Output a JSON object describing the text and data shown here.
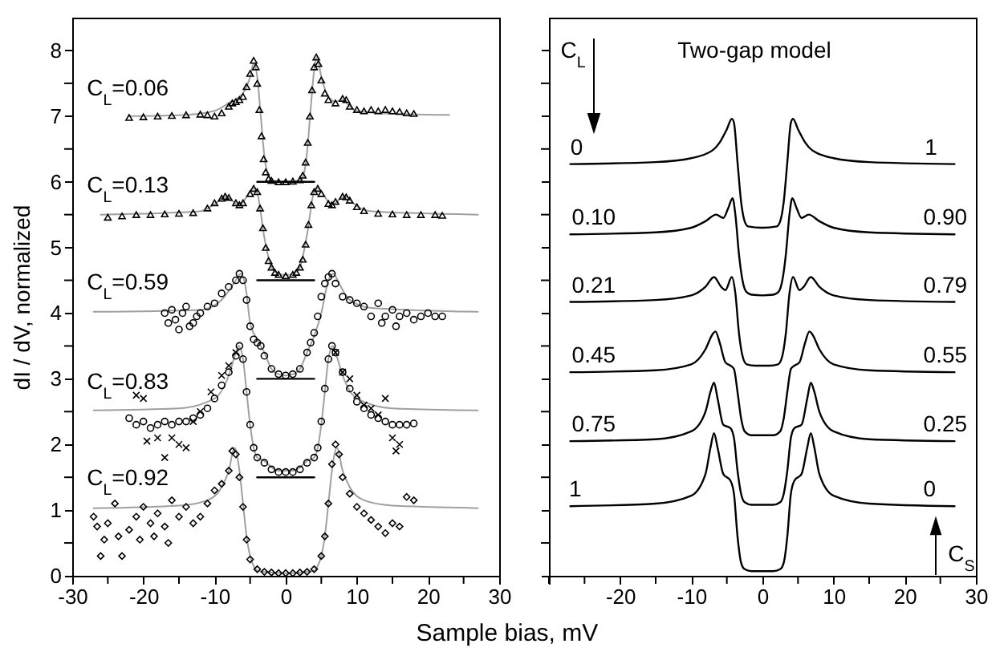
{
  "chart_data": [
    {
      "type": "scatter",
      "xlabel": "Sample bias, mV",
      "ylabel": "dI / dV, normalized",
      "xlim": [
        -30,
        30
      ],
      "ylim": [
        0,
        8.5
      ],
      "xticks": [
        -30,
        {
          "value": -25,
          "label": null
        },
        -20,
        {
          "value": -15,
          "label": null
        },
        -10,
        {
          "value": -5,
          "label": null
        },
        0,
        {
          "value": 5,
          "label": null
        },
        10,
        {
          "value": 15,
          "label": null
        },
        20,
        {
          "value": 25,
          "label": null
        },
        30
      ],
      "yticks": [
        0,
        {
          "value": 0.5,
          "label": null
        },
        1,
        {
          "value": 1.5,
          "label": null
        },
        2,
        {
          "value": 2.5,
          "label": null
        },
        3,
        {
          "value": 3.5,
          "label": null
        },
        4,
        {
          "value": 4.5,
          "label": null
        },
        5,
        {
          "value": 5.5,
          "label": null
        },
        6,
        {
          "value": 6.5,
          "label": null
        },
        7,
        {
          "value": 7.5,
          "label": null
        },
        8
      ],
      "series": [
        {
          "type": "line",
          "color": "#a0a0a0",
          "x": [
            -22,
            -14,
            -10,
            -8,
            -6,
            -5,
            -4.5,
            -4,
            -3.5,
            -3,
            -2.5,
            -2,
            0,
            2,
            2.5,
            3,
            3.5,
            4,
            4.4,
            5,
            6,
            7,
            8,
            9,
            10,
            14,
            23
          ],
          "values": [
            7.0,
            7.02,
            7.08,
            7.2,
            7.35,
            7.6,
            7.8,
            7.6,
            7.0,
            6.4,
            6.1,
            6.02,
            6.0,
            6.02,
            6.1,
            6.45,
            7.1,
            7.7,
            7.9,
            7.6,
            7.3,
            7.22,
            7.25,
            7.15,
            7.08,
            7.04,
            7.02
          ]
        },
        {
          "color": "#000000",
          "marker": "triangle",
          "x": [
            -22,
            -20,
            -18,
            -16,
            -14,
            -12,
            -11,
            -10,
            -9,
            -8,
            -7.5,
            -7,
            -6.5,
            -6,
            -5.5,
            -5,
            -4.5,
            -4.2,
            -4,
            -3.7,
            -3.4,
            -3.1,
            -2.8,
            -2.4,
            -2,
            -1,
            0,
            1,
            2,
            2.4,
            2.8,
            3.1,
            3.4,
            3.7,
            4,
            4.3,
            4.6,
            5,
            5.5,
            6,
            7,
            8,
            8.5,
            9,
            10,
            11,
            12,
            13,
            14,
            15,
            16,
            17,
            18
          ],
          "values": [
            6.98,
            6.99,
            7.0,
            7.01,
            7.02,
            7.03,
            7.02,
            7.0,
            7.05,
            7.15,
            7.2,
            7.22,
            7.25,
            7.3,
            7.45,
            7.65,
            7.85,
            7.75,
            7.5,
            7.1,
            6.7,
            6.35,
            6.15,
            6.05,
            6.02,
            6.0,
            6.0,
            6.01,
            6.03,
            6.1,
            6.3,
            6.6,
            7.0,
            7.4,
            7.75,
            7.9,
            7.8,
            7.55,
            7.35,
            7.25,
            7.2,
            7.27,
            7.25,
            7.15,
            7.1,
            7.08,
            7.1,
            7.08,
            7.1,
            7.08,
            7.07,
            7.05,
            7.04
          ]
        },
        {
          "type": "line",
          "color": "#000000",
          "x": [
            -4,
            4
          ],
          "values": [
            6.0,
            6.0
          ]
        },
        {
          "type": "line",
          "color": "#a0a0a0",
          "x": [
            -26,
            -12,
            -10,
            -8.5,
            -6.5,
            -4.5,
            -4,
            -3,
            -2,
            -1,
            0,
            1,
            2,
            3,
            4,
            4.5,
            6.5,
            8.3,
            10,
            12,
            27
          ],
          "values": [
            5.5,
            5.55,
            5.66,
            5.77,
            5.65,
            5.9,
            5.83,
            5.15,
            4.7,
            4.6,
            4.58,
            4.6,
            4.7,
            5.2,
            5.85,
            5.9,
            5.65,
            5.78,
            5.63,
            5.55,
            5.5
          ]
        },
        {
          "color": "#000000",
          "marker": "triangle",
          "x": [
            -25,
            -23,
            -21,
            -19,
            -17,
            -15,
            -13,
            -11,
            -10,
            -9,
            -8.5,
            -8,
            -7,
            -6.5,
            -6,
            -5,
            -4.5,
            -4,
            -3.6,
            -3.2,
            -2.8,
            -2.4,
            -2,
            -1.5,
            -1,
            0,
            1,
            1.5,
            2,
            2.4,
            2.8,
            3.2,
            3.6,
            4,
            4.5,
            5,
            6,
            6.5,
            7,
            8,
            8.5,
            9,
            10,
            11,
            13,
            15,
            17,
            19,
            21,
            22
          ],
          "values": [
            5.46,
            5.48,
            5.5,
            5.5,
            5.51,
            5.52,
            5.53,
            5.6,
            5.68,
            5.75,
            5.78,
            5.76,
            5.68,
            5.65,
            5.68,
            5.82,
            5.9,
            5.85,
            5.6,
            5.3,
            5.0,
            4.8,
            4.7,
            4.62,
            4.59,
            4.57,
            4.59,
            4.62,
            4.7,
            4.82,
            5.05,
            5.35,
            5.65,
            5.85,
            5.9,
            5.82,
            5.67,
            5.65,
            5.7,
            5.78,
            5.77,
            5.72,
            5.62,
            5.56,
            5.52,
            5.51,
            5.5,
            5.5,
            5.5,
            5.49
          ]
        },
        {
          "type": "line",
          "color": "#000000",
          "x": [
            -4,
            4
          ],
          "values": [
            4.5,
            4.5
          ]
        },
        {
          "type": "line",
          "color": "#a0a0a0",
          "x": [
            -27,
            -12,
            -9,
            -7,
            -6.3,
            -5.5,
            -5,
            -4,
            -3,
            -2,
            -1,
            0,
            1,
            2,
            3,
            4,
            5,
            6,
            6.7,
            7.5,
            9,
            12,
            27
          ],
          "values": [
            4.02,
            4.05,
            4.2,
            4.5,
            4.6,
            4.3,
            3.85,
            3.6,
            3.4,
            3.15,
            3.07,
            3.05,
            3.07,
            3.15,
            3.4,
            3.65,
            4.0,
            4.5,
            4.6,
            4.45,
            4.2,
            4.08,
            4.02
          ]
        },
        {
          "color": "#000000",
          "marker": "circle",
          "x": [
            -17,
            -16.5,
            -16,
            -15.5,
            -15,
            -14.5,
            -14,
            -13.5,
            -13,
            -12.5,
            -12,
            -11,
            -10,
            -9,
            -8,
            -7,
            -6.5,
            -6,
            -5.5,
            -5,
            -4.5,
            -4,
            -3.5,
            -3,
            -2,
            -1,
            0,
            1,
            2,
            3,
            3.5,
            4,
            4.5,
            5,
            5.5,
            6,
            6.5,
            7,
            8,
            9,
            10,
            11,
            12,
            13,
            13.5,
            14,
            15,
            15.5,
            16,
            17,
            18,
            19,
            20,
            21,
            22
          ],
          "values": [
            4.0,
            3.85,
            4.05,
            3.9,
            3.75,
            4.0,
            4.1,
            3.8,
            3.85,
            3.95,
            4.0,
            4.1,
            4.15,
            4.3,
            4.4,
            4.5,
            4.6,
            4.5,
            4.2,
            3.8,
            3.6,
            3.55,
            3.5,
            3.35,
            3.15,
            3.07,
            3.05,
            3.07,
            3.15,
            3.4,
            3.55,
            3.7,
            3.95,
            4.25,
            4.45,
            4.55,
            4.6,
            4.45,
            4.25,
            4.2,
            4.15,
            4.1,
            3.95,
            4.15,
            3.85,
            3.95,
            4.05,
            3.8,
            3.95,
            4.0,
            3.9,
            3.95,
            4.0,
            3.95,
            3.95
          ]
        },
        {
          "type": "line",
          "color": "#000000",
          "x": [
            -4,
            4
          ],
          "values": [
            3.0,
            3.0
          ]
        },
        {
          "type": "line",
          "color": "#a0a0a0",
          "x": [
            -27,
            -15,
            -10,
            -8,
            -7,
            -6.6,
            -6,
            -5.5,
            -5,
            -4.5,
            -4,
            -3,
            -2,
            -1,
            0,
            1,
            2,
            3,
            4,
            4.5,
            5,
            5.5,
            6,
            6.6,
            7,
            8,
            10,
            15,
            27
          ],
          "values": [
            2.52,
            2.55,
            2.7,
            3.05,
            3.4,
            3.5,
            3.3,
            2.8,
            2.3,
            1.95,
            1.8,
            1.75,
            1.65,
            1.6,
            1.6,
            1.6,
            1.65,
            1.75,
            1.8,
            1.95,
            2.3,
            2.8,
            3.3,
            3.5,
            3.4,
            3.05,
            2.7,
            2.55,
            2.52
          ]
        },
        {
          "color": "#000000",
          "marker": "circle",
          "x": [
            -22,
            -21,
            -20,
            -19,
            -18,
            -17,
            -16,
            -15,
            -14,
            -13,
            -12,
            -11,
            -10,
            -9,
            -8,
            -7,
            -6.5,
            -6,
            -5.5,
            -5,
            -4.5,
            -4,
            -3,
            -2,
            -1,
            0,
            1,
            2,
            3,
            4,
            4.5,
            5,
            5.5,
            6,
            6.5,
            7,
            8,
            9,
            10,
            11,
            12,
            13,
            14,
            15,
            16,
            17,
            18
          ],
          "values": [
            2.4,
            2.3,
            2.35,
            2.25,
            2.3,
            2.35,
            2.3,
            2.35,
            2.35,
            2.4,
            2.45,
            2.55,
            2.7,
            2.9,
            3.1,
            3.35,
            3.5,
            3.3,
            2.8,
            2.3,
            1.95,
            1.8,
            1.72,
            1.62,
            1.58,
            1.58,
            1.58,
            1.62,
            1.72,
            1.8,
            1.95,
            2.35,
            2.85,
            3.3,
            3.5,
            3.4,
            3.1,
            2.85,
            2.65,
            2.55,
            2.45,
            2.4,
            2.35,
            2.3,
            2.3,
            2.3,
            2.32
          ]
        },
        {
          "color": "#000000",
          "marker": "cross",
          "x": [
            -21,
            -20,
            -19.5,
            -18,
            -17,
            -16,
            -15,
            -14,
            -13,
            -12,
            -10.5,
            -9,
            -8,
            -7,
            7,
            8,
            9,
            10,
            11,
            12,
            13,
            14,
            15,
            15.5,
            16
          ],
          "values": [
            2.75,
            2.7,
            2.05,
            2.1,
            1.8,
            2.1,
            2.0,
            1.95,
            2.35,
            2.5,
            2.8,
            3.05,
            3.2,
            3.4,
            3.4,
            3.1,
            3.0,
            2.75,
            2.6,
            2.55,
            2.45,
            2.7,
            2.1,
            1.9,
            2.0
          ]
        },
        {
          "type": "line",
          "color": "#000000",
          "x": [
            -4,
            4
          ],
          "values": [
            1.5,
            1.5
          ]
        },
        {
          "type": "line",
          "color": "#a0a0a0",
          "x": [
            -27,
            -15,
            -11,
            -9,
            -8,
            -7.2,
            -6.5,
            -6,
            -5.5,
            -5,
            -4.5,
            -4,
            -2,
            0,
            2,
            4,
            4.5,
            5,
            5.5,
            6,
            6.5,
            7.2,
            8,
            9,
            11,
            15,
            27
          ],
          "values": [
            1.03,
            1.07,
            1.15,
            1.35,
            1.6,
            1.95,
            1.6,
            1.1,
            0.6,
            0.3,
            0.15,
            0.08,
            0.05,
            0.04,
            0.05,
            0.08,
            0.15,
            0.3,
            0.6,
            1.1,
            1.6,
            1.95,
            1.6,
            1.35,
            1.15,
            1.07,
            1.03
          ]
        },
        {
          "color": "#000000",
          "marker": "diamond",
          "x": [
            -27,
            -26.5,
            -26,
            -25.5,
            -25,
            -24,
            -23.5,
            -23,
            -22,
            -21,
            -20.5,
            -20,
            -19,
            -18.5,
            -18,
            -17,
            -16.5,
            -16,
            -15,
            -14,
            -13,
            -12,
            -11,
            -10,
            -9,
            -8,
            -7.5,
            -7,
            -6.5,
            -6,
            -5.5,
            -5,
            -4,
            -3,
            -2,
            -1,
            0,
            1,
            2,
            3,
            4,
            5,
            5.5,
            6,
            6.5,
            7,
            7.5,
            8,
            9,
            10,
            11,
            12,
            13,
            14,
            15,
            16,
            17,
            18
          ],
          "values": [
            0.9,
            0.75,
            0.3,
            0.55,
            0.8,
            1.1,
            0.6,
            0.3,
            0.7,
            0.9,
            0.55,
            1.05,
            0.8,
            0.6,
            0.95,
            0.75,
            0.5,
            1.15,
            0.9,
            1.05,
            0.8,
            0.9,
            1.1,
            1.3,
            1.4,
            1.6,
            1.9,
            1.85,
            1.5,
            1.05,
            0.55,
            0.25,
            0.1,
            0.06,
            0.05,
            0.04,
            0.04,
            0.04,
            0.05,
            0.06,
            0.1,
            0.3,
            0.6,
            1.1,
            1.7,
            2.0,
            1.85,
            1.5,
            1.25,
            1.05,
            0.95,
            0.85,
            0.75,
            0.65,
            0.8,
            0.75,
            1.2,
            1.15
          ]
        }
      ],
      "annotations": [
        {
          "text": "C$_{L}$=0.06",
          "x": -22.2,
          "y": 7.0
        },
        {
          "text": "C$_{L}$=0.13",
          "x": -22.2,
          "y": 5.52
        },
        {
          "text": "C$_{L}$=0.59",
          "x": -22.2,
          "y": 4.04
        },
        {
          "text": "C$_{L}$=0.83",
          "x": -22.2,
          "y": 2.53
        },
        {
          "text": "C$_{L}$=0.92",
          "x": -22.2,
          "y": 1.06
        }
      ]
    },
    {
      "type": "line",
      "xlim": [
        -30,
        30
      ],
      "ylim": [
        0,
        8.5
      ],
      "tick_labels": "x",
      "xticks": [
        {
          "value": -30,
          "label": null
        },
        {
          "value": -25,
          "label": null
        },
        -20,
        {
          "value": -15,
          "label": null
        },
        -10,
        {
          "value": -5,
          "label": null
        },
        0,
        {
          "value": 5,
          "label": null
        },
        10,
        {
          "value": 15,
          "label": null
        },
        20,
        {
          "value": 25,
          "label": null
        },
        30
      ],
      "yticks": [
        0,
        {
          "value": 0.5,
          "label": null
        },
        1,
        {
          "value": 1.5,
          "label": null
        },
        2,
        {
          "value": 2.5,
          "label": null
        },
        3,
        {
          "value": 3.5,
          "label": null
        },
        4,
        {
          "value": 4.5,
          "label": null
        },
        5,
        {
          "value": 5.5,
          "label": null
        },
        6,
        {
          "value": 6.5,
          "label": null
        },
        7,
        {
          "value": 7.5,
          "label": null
        },
        8
      ],
      "series": [
        {
          "color": "#000000",
          "x": [
            -27,
            -15,
            -10,
            -7,
            -6,
            -5,
            -4.3,
            -4,
            -3.5,
            -3,
            -2.5,
            -2,
            0,
            2,
            2.5,
            3,
            3.5,
            4,
            4.3,
            5,
            6,
            7,
            10,
            15,
            27
          ],
          "values": [
            6.27,
            6.3,
            6.36,
            6.48,
            6.6,
            6.8,
            6.96,
            6.9,
            6.3,
            5.7,
            5.4,
            5.32,
            5.3,
            5.32,
            5.4,
            5.7,
            6.3,
            6.9,
            6.96,
            6.8,
            6.6,
            6.48,
            6.36,
            6.3,
            6.27
          ]
        },
        {
          "color": "#000000",
          "x": [
            -27,
            -15,
            -10,
            -8,
            -6.5,
            -5.5,
            -4.8,
            -4.2,
            -3.8,
            -3.3,
            -2.8,
            -2.3,
            -1.5,
            0,
            1.5,
            2.3,
            2.8,
            3.3,
            3.8,
            4.2,
            4.8,
            5.5,
            6.5,
            8,
            10,
            15,
            27
          ],
          "values": [
            5.2,
            5.23,
            5.3,
            5.4,
            5.5,
            5.45,
            5.6,
            5.75,
            5.5,
            4.9,
            4.5,
            4.33,
            4.28,
            4.27,
            4.28,
            4.33,
            4.5,
            4.9,
            5.5,
            5.75,
            5.6,
            5.45,
            5.5,
            5.4,
            5.3,
            5.23,
            5.2
          ]
        },
        {
          "color": "#000000",
          "x": [
            -27,
            -15,
            -10,
            -8,
            -6.8,
            -5.8,
            -5.2,
            -4.3,
            -3.8,
            -3.3,
            -2.8,
            -2.2,
            -1,
            0,
            1,
            2.2,
            2.8,
            3.3,
            3.8,
            4.3,
            5.2,
            5.8,
            6.8,
            8,
            10,
            15,
            27
          ],
          "values": [
            4.17,
            4.2,
            4.27,
            4.4,
            4.55,
            4.4,
            4.35,
            4.55,
            4.3,
            3.7,
            3.35,
            3.22,
            3.2,
            3.2,
            3.2,
            3.22,
            3.35,
            3.7,
            4.3,
            4.55,
            4.35,
            4.4,
            4.55,
            4.4,
            4.27,
            4.2,
            4.17
          ]
        },
        {
          "color": "#000000",
          "x": [
            -27,
            -15,
            -10,
            -8,
            -7,
            -6.6,
            -6,
            -5.2,
            -4.5,
            -4,
            -3.5,
            -3,
            -2.5,
            -1.5,
            0,
            1.5,
            2.5,
            3,
            3.5,
            4,
            4.5,
            5.2,
            6,
            6.6,
            7,
            8,
            10,
            15,
            27
          ],
          "values": [
            3.1,
            3.13,
            3.22,
            3.45,
            3.68,
            3.72,
            3.55,
            3.25,
            3.2,
            3.15,
            2.8,
            2.4,
            2.2,
            2.14,
            2.14,
            2.14,
            2.2,
            2.4,
            2.8,
            3.15,
            3.2,
            3.25,
            3.55,
            3.72,
            3.68,
            3.45,
            3.22,
            3.13,
            3.1
          ]
        },
        {
          "color": "#000000",
          "x": [
            -27,
            -15,
            -10,
            -8,
            -7.3,
            -6.8,
            -6.3,
            -5.5,
            -4.5,
            -4,
            -3.5,
            -3,
            -2.5,
            -1.5,
            0,
            1.5,
            2.5,
            3,
            3.5,
            4,
            4.5,
            5.5,
            6.3,
            6.8,
            7.3,
            8,
            10,
            15,
            27
          ],
          "values": [
            2.05,
            2.08,
            2.2,
            2.5,
            2.8,
            2.94,
            2.7,
            2.3,
            2.25,
            2.1,
            1.6,
            1.25,
            1.12,
            1.08,
            1.08,
            1.08,
            1.12,
            1.25,
            1.6,
            2.1,
            2.25,
            2.3,
            2.7,
            2.94,
            2.8,
            2.5,
            2.2,
            2.08,
            2.05
          ]
        },
        {
          "color": "#000000",
          "x": [
            -27,
            -15,
            -10,
            -8,
            -7.3,
            -6.8,
            -6.3,
            -5.5,
            -4.5,
            -4,
            -3.5,
            -3,
            -2.5,
            -1.5,
            0,
            1.5,
            2.5,
            3,
            3.5,
            4,
            4.5,
            5.5,
            6.3,
            6.8,
            7.3,
            8,
            10,
            15,
            27
          ],
          "values": [
            1.06,
            1.1,
            1.22,
            1.55,
            1.95,
            2.17,
            1.95,
            1.55,
            1.45,
            1.25,
            0.6,
            0.2,
            0.1,
            0.07,
            0.07,
            0.07,
            0.1,
            0.2,
            0.6,
            1.25,
            1.45,
            1.55,
            1.95,
            2.17,
            1.95,
            1.55,
            1.22,
            1.1,
            1.06
          ]
        }
      ],
      "annotations": [
        "C$_{L}$",
        "C$_{S}$",
        "Two-gap model",
        {
          "text": "0",
          "x": -26.1,
          "y": 6.27
        },
        {
          "text": "0.10",
          "x": -23.7,
          "y": 5.2
        },
        {
          "text": "0.21",
          "x": -23.7,
          "y": 4.17
        },
        {
          "text": "0.45",
          "x": -23.7,
          "y": 3.1
        },
        {
          "text": "0.75",
          "x": -23.7,
          "y": 2.05
        },
        {
          "text": "1",
          "x": -26.3,
          "y": 1.06
        },
        {
          "text": "1",
          "x": 23.7,
          "y": 6.27
        },
        {
          "text": "0.90",
          "x": 25.7,
          "y": 5.2
        },
        {
          "text": "0.79",
          "x": 25.7,
          "y": 4.17
        },
        {
          "text": "0.55",
          "x": 25.7,
          "y": 3.1
        },
        {
          "text": "0.25",
          "x": 25.7,
          "y": 2.05
        },
        {
          "text": "0",
          "x": 23.5,
          "y": 1.06
        }
      ]
    }
  ]
}
